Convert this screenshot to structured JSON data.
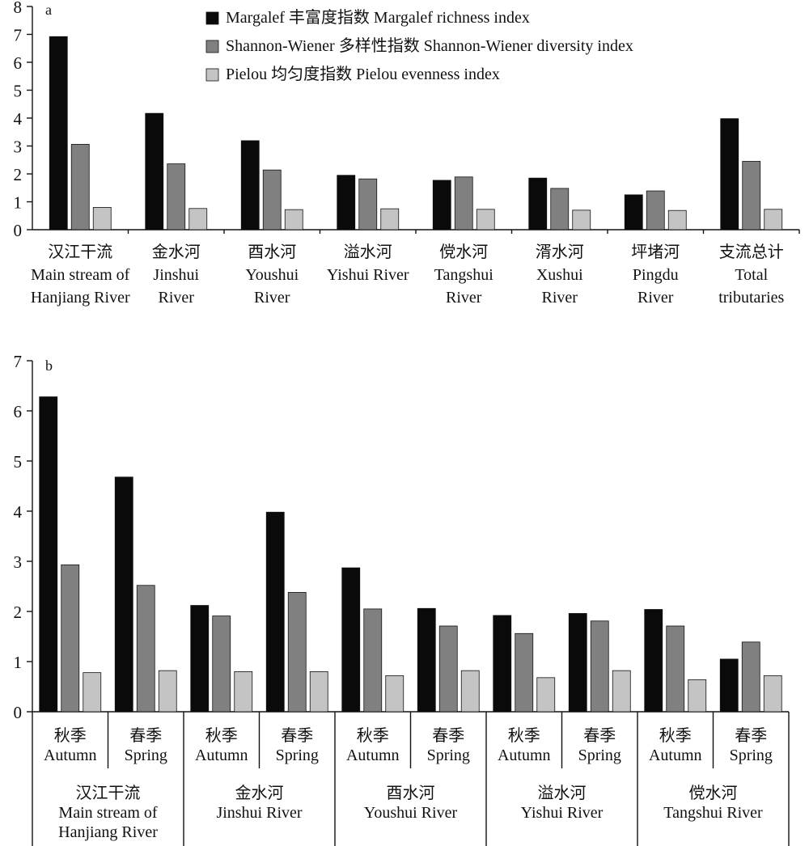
{
  "chart_data": [
    {
      "panel_label": "a",
      "type": "bar",
      "ylim": [
        0,
        8
      ],
      "yticks": [
        "0",
        "1",
        "2",
        "3",
        "4",
        "5",
        "6",
        "7",
        "8"
      ],
      "categories": [
        [
          "汉江干流",
          "Main stream of",
          "Hanjiang River"
        ],
        [
          "金水河",
          "Jinshui",
          "River"
        ],
        [
          "酉水河",
          "Youshui",
          "River"
        ],
        [
          "溢水河",
          "Yishui River"
        ],
        [
          "傥水河",
          "Tangshui",
          "River"
        ],
        [
          "湑水河",
          "Xushui",
          "River"
        ],
        [
          "坪堵河",
          "Pingdu",
          "River"
        ],
        [
          "支流总计",
          "Total",
          "tributaries"
        ]
      ],
      "series": [
        {
          "name": "Margalef 丰富度指数 Margalef richness index",
          "color": "#0a0a0a",
          "values": [
            6.92,
            4.17,
            3.19,
            1.95,
            1.77,
            1.85,
            1.25,
            3.98
          ]
        },
        {
          "name": "Shannon-Wiener 多样性指数 Shannon-Wiener diversity index",
          "color": "#808080",
          "values": [
            3.06,
            2.36,
            2.14,
            1.82,
            1.89,
            1.48,
            1.39,
            2.45
          ]
        },
        {
          "name": "Pielou 均匀度指数 Pielou evenness index",
          "color": "#c4c4c4",
          "values": [
            0.8,
            0.76,
            0.72,
            0.75,
            0.73,
            0.7,
            0.69,
            0.73
          ]
        }
      ],
      "legend_position": "top-center"
    },
    {
      "panel_label": "b",
      "type": "bar",
      "ylim": [
        0,
        7
      ],
      "yticks": [
        "0",
        "1",
        "2",
        "3",
        "4",
        "5",
        "6",
        "7"
      ],
      "seasons": [
        [
          "秋季",
          "Autumn"
        ],
        [
          "春季",
          "Spring"
        ],
        [
          "秋季",
          "Autumn"
        ],
        [
          "春季",
          "Spring"
        ],
        [
          "秋季",
          "Autumn"
        ],
        [
          "春季",
          "Spring"
        ],
        [
          "秋季",
          "Autumn"
        ],
        [
          "春季",
          "Spring"
        ],
        [
          "秋季",
          "Autumn"
        ],
        [
          "春季",
          "Spring"
        ]
      ],
      "groups": [
        [
          "汉江干流",
          "Main stream of",
          "Hanjiang River"
        ],
        [
          "金水河",
          "Jinshui River"
        ],
        [
          "酉水河",
          "Youshui River"
        ],
        [
          "溢水河",
          "Yishui River"
        ],
        [
          "傥水河",
          "Tangshui River"
        ]
      ],
      "series": [
        {
          "color": "#0a0a0a",
          "values": [
            6.28,
            4.68,
            2.12,
            3.98,
            2.87,
            2.06,
            1.92,
            1.96,
            2.04,
            1.05
          ]
        },
        {
          "color": "#808080",
          "values": [
            2.93,
            2.52,
            1.91,
            2.38,
            2.05,
            1.71,
            1.56,
            1.81,
            1.71,
            1.39
          ]
        },
        {
          "color": "#c4c4c4",
          "values": [
            0.78,
            0.82,
            0.8,
            0.8,
            0.72,
            0.82,
            0.68,
            0.82,
            0.64,
            0.72
          ]
        }
      ]
    }
  ]
}
